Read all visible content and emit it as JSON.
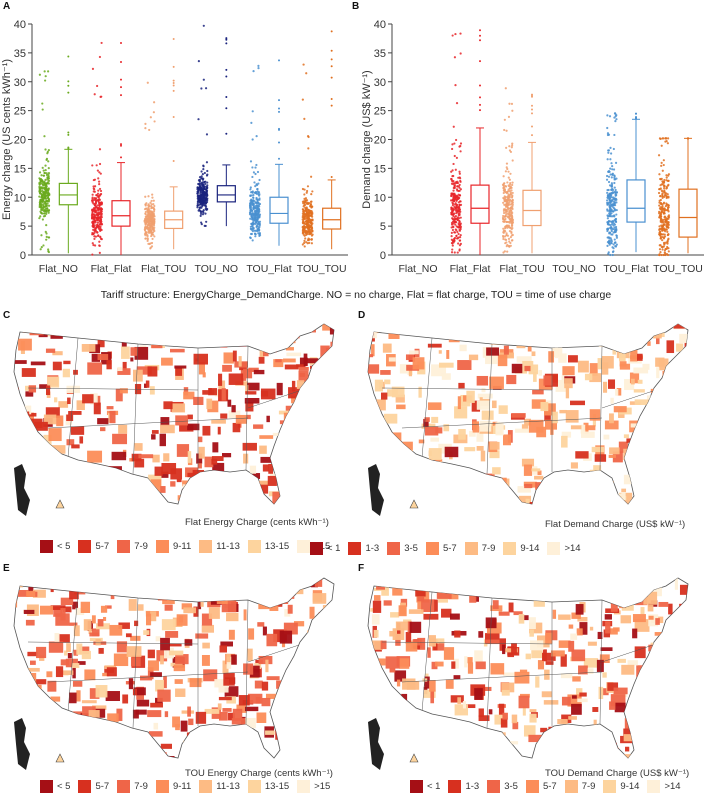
{
  "caption": "Tariff structure: EnergyCharge_DemandCharge. NO = no charge, Flat = flat charge, TOU = time of use charge",
  "chart_data": [
    {
      "panel": "A",
      "type": "box",
      "ylabel": "Energy charge (US cents kWh⁻¹)",
      "ylim": [
        0,
        40
      ],
      "yticks": [
        0,
        5,
        10,
        15,
        20,
        25,
        30,
        35,
        40
      ],
      "categories": [
        "Flat_NO",
        "Flat_Flat",
        "Flat_TOU",
        "TOU_NO",
        "TOU_Flat",
        "TOU_TOU"
      ],
      "colors": [
        "#6aaa1e",
        "#e8262a",
        "#f0a070",
        "#1a237e",
        "#4a90d0",
        "#e07020"
      ],
      "boxes": [
        {
          "min": 0.3,
          "q1": 8.7,
          "median": 10.4,
          "q3": 12.4,
          "max": 18.3,
          "outlier_max": 36.8
        },
        {
          "min": 0,
          "q1": 5.0,
          "median": 6.8,
          "q3": 9.4,
          "max": 16.0,
          "outlier_max": 39
        },
        {
          "min": 1.0,
          "q1": 4.6,
          "median": 6.1,
          "q3": 7.6,
          "max": 11.8,
          "outlier_max": 39
        },
        {
          "min": 5.0,
          "q1": 9.2,
          "median": 10.4,
          "q3": 12.0,
          "max": 15.6,
          "outlier_max": 39.7
        },
        {
          "min": 1.6,
          "q1": 5.5,
          "median": 7.2,
          "q3": 10.0,
          "max": 15.7,
          "outlier_max": 34.8
        },
        {
          "min": 1.0,
          "q1": 4.5,
          "median": 6.1,
          "q3": 8.1,
          "max": 13.0,
          "outlier_max": 39.3
        }
      ]
    },
    {
      "panel": "B",
      "type": "box",
      "ylabel": "Demand charge (US$ kW⁻¹)",
      "ylim": [
        0,
        40
      ],
      "yticks": [
        0,
        5,
        10,
        15,
        20,
        25,
        30,
        35,
        40
      ],
      "categories": [
        "Flat_NO",
        "Flat_Flat",
        "Flat_TOU",
        "TOU_NO",
        "TOU_Flat",
        "TOU_TOU"
      ],
      "colors": [
        "#6aaa1e",
        "#e8262a",
        "#f0a070",
        "#1a237e",
        "#4a90d0",
        "#e07020"
      ],
      "boxes": [
        null,
        {
          "min": 0,
          "q1": 5.5,
          "median": 8.1,
          "q3": 12.1,
          "max": 22.0,
          "outlier_max": 39.2
        },
        {
          "min": 0.3,
          "q1": 5.1,
          "median": 7.7,
          "q3": 11.2,
          "max": 19.5,
          "outlier_max": 29.5
        },
        null,
        {
          "min": 0.5,
          "q1": 5.7,
          "median": 8.1,
          "q3": 13.0,
          "max": 23.5,
          "outlier_max": 24.6
        },
        {
          "min": 0.3,
          "q1": 3.1,
          "median": 6.5,
          "q3": 11.4,
          "max": 20.2,
          "outlier_max": 20.2
        }
      ]
    }
  ],
  "maps": [
    {
      "panel": "C",
      "title": "Flat Energy Charge (cents kWh⁻¹)",
      "legend": [
        "< 5",
        "5-7",
        "7-9",
        "9-11",
        "11-13",
        "13-15",
        ">15"
      ],
      "weights": [
        3,
        4,
        3,
        2,
        2,
        1,
        1
      ]
    },
    {
      "panel": "D",
      "title": "Flat Demand Charge (US$ kW⁻¹)",
      "legend": [
        "< 1",
        "1-3",
        "3-5",
        "5-7",
        "7-9",
        "9-14",
        ">14"
      ],
      "weights": [
        0.3,
        1,
        2,
        3,
        3,
        3,
        3
      ]
    },
    {
      "panel": "E",
      "title": "TOU Energy Charge (cents kWh⁻¹)",
      "legend": [
        "< 5",
        "5-7",
        "7-9",
        "9-11",
        "11-13",
        "13-15",
        ">15"
      ],
      "weights": [
        2,
        2,
        3,
        3,
        2,
        1,
        1
      ]
    },
    {
      "panel": "F",
      "title": "TOU Demand Charge (US$ kW⁻¹)",
      "legend": [
        "< 1",
        "1-3",
        "3-5",
        "5-7",
        "7-9",
        "9-14",
        ">14"
      ],
      "weights": [
        1,
        2,
        3,
        2,
        2,
        2,
        1
      ]
    }
  ],
  "legend_colors": [
    "#a50f15",
    "#d7301f",
    "#ef6548",
    "#fc8d59",
    "#fdbb84",
    "#fdd49e",
    "#fef0d9"
  ]
}
